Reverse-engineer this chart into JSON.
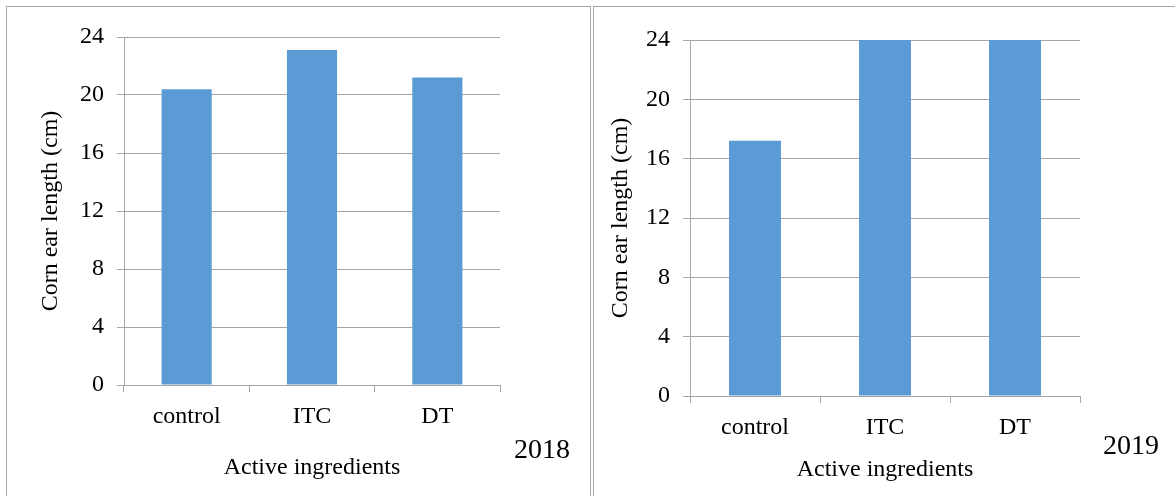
{
  "chart_data": [
    {
      "type": "bar",
      "xlabel": "Active ingredients",
      "ylabel": "Corn ear length (cm)",
      "categories": [
        "control",
        "ITC",
        "DT"
      ],
      "values": [
        20.4,
        23.1,
        21.2
      ],
      "color": "#5b9bd5",
      "ylim": [
        0,
        24
      ],
      "yticks": [
        0,
        4,
        8,
        12,
        16,
        20,
        24
      ],
      "grid": "y",
      "annotations": [
        "2018"
      ]
    },
    {
      "type": "bar",
      "xlabel": "Active ingredients",
      "ylabel": "Corn ear length (cm)",
      "categories": [
        "control",
        "ITC",
        "DT"
      ],
      "values": [
        17.2,
        24,
        24
      ],
      "color": "#5b9bd5",
      "ylim": [
        0,
        24
      ],
      "yticks": [
        0,
        4,
        8,
        12,
        16,
        20,
        24
      ],
      "grid": "y",
      "annotations": [
        "2019"
      ]
    }
  ]
}
